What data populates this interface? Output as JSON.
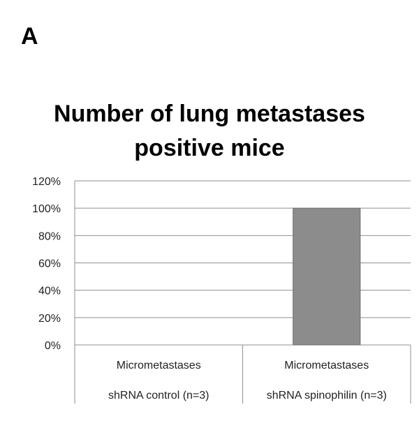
{
  "panel_label": "A",
  "chart_data": {
    "type": "bar",
    "title": [
      "Number of lung metastases",
      "positive mice"
    ],
    "categories": [
      [
        "Micrometastases",
        "shRNA control (n=3)"
      ],
      [
        "Micrometastases",
        "shRNA spinophilin (n=3)"
      ]
    ],
    "values": [
      0,
      100
    ],
    "unit": "%",
    "ylim": [
      0,
      120
    ],
    "yticks": [
      "0%",
      "20%",
      "40%",
      "60%",
      "80%",
      "100%",
      "120%"
    ],
    "grid": true,
    "bar_color": "#8c8c8c",
    "xlabel": "",
    "ylabel": ""
  }
}
